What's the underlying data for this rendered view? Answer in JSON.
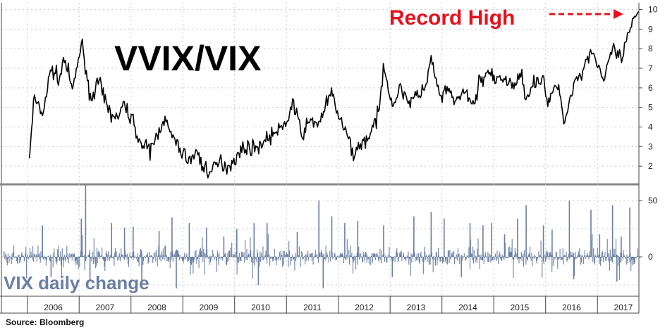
{
  "source_label": "Source:  Bloomberg",
  "colors": {
    "ratio_line": "#000000",
    "vix_change": "#6a7fa3",
    "record_high": "#e8101c",
    "divider": "#888888",
    "grid": "#c8c8c8"
  },
  "chart_data": [
    {
      "type": "line",
      "title": "VVIX/VIX",
      "annotation": "Record High",
      "x_range": [
        "2005-06",
        "2017-10"
      ],
      "ylim": [
        1.0,
        10.2
      ],
      "y_ticks": [
        "2",
        "3",
        "4",
        "5",
        "6",
        "7",
        "8",
        "9",
        "10"
      ],
      "y_axis_side": "right",
      "grid": true,
      "series": [
        {
          "values": [
            [
              "2006-01",
              2.4
            ],
            [
              "2006-02",
              5.5
            ],
            [
              "2006-04",
              4.6
            ],
            [
              "2006-06",
              7.0
            ],
            [
              "2006-08",
              6.4
            ],
            [
              "2006-09",
              7.6
            ],
            [
              "2006-11",
              5.8
            ],
            [
              "2007-01",
              8.3
            ],
            [
              "2007-02",
              7.2
            ],
            [
              "2007-03",
              5.4
            ],
            [
              "2007-05",
              6.3
            ],
            [
              "2007-07",
              5.0
            ],
            [
              "2007-09",
              4.4
            ],
            [
              "2007-11",
              5.1
            ],
            [
              "2008-01",
              4.3
            ],
            [
              "2008-03",
              3.0
            ],
            [
              "2008-05",
              2.8
            ],
            [
              "2008-07",
              3.8
            ],
            [
              "2008-08",
              4.5
            ],
            [
              "2008-10",
              3.5
            ],
            [
              "2008-12",
              2.8
            ],
            [
              "2009-02",
              2.3
            ],
            [
              "2009-04",
              2.7
            ],
            [
              "2009-05",
              2.0
            ],
            [
              "2009-07",
              1.7
            ],
            [
              "2009-09",
              2.2
            ],
            [
              "2009-11",
              2.0
            ],
            [
              "2010-01",
              2.5
            ],
            [
              "2010-03",
              3.0
            ],
            [
              "2010-05",
              2.9
            ],
            [
              "2010-07",
              3.2
            ],
            [
              "2010-09",
              3.6
            ],
            [
              "2010-11",
              3.8
            ],
            [
              "2011-01",
              4.5
            ],
            [
              "2011-02",
              5.3
            ],
            [
              "2011-04",
              3.6
            ],
            [
              "2011-06",
              4.3
            ],
            [
              "2011-08",
              4.2
            ],
            [
              "2011-10",
              5.3
            ],
            [
              "2011-11",
              5.7
            ],
            [
              "2012-01",
              4.3
            ],
            [
              "2012-03",
              3.3
            ],
            [
              "2012-04",
              2.6
            ],
            [
              "2012-06",
              3.2
            ],
            [
              "2012-08",
              3.6
            ],
            [
              "2012-10",
              4.8
            ],
            [
              "2012-11",
              7.3
            ],
            [
              "2013-01",
              5.1
            ],
            [
              "2013-03",
              6.0
            ],
            [
              "2013-05",
              5.3
            ],
            [
              "2013-07",
              5.6
            ],
            [
              "2013-09",
              6.2
            ],
            [
              "2013-10",
              7.5
            ],
            [
              "2013-12",
              5.5
            ],
            [
              "2014-02",
              5.8
            ],
            [
              "2014-04",
              5.3
            ],
            [
              "2014-06",
              5.8
            ],
            [
              "2014-08",
              5.0
            ],
            [
              "2014-09",
              6.3
            ],
            [
              "2014-11",
              6.8
            ],
            [
              "2015-01",
              6.3
            ],
            [
              "2015-03",
              6.5
            ],
            [
              "2015-05",
              6.1
            ],
            [
              "2015-07",
              6.6
            ],
            [
              "2015-08",
              5.6
            ],
            [
              "2015-10",
              6.3
            ],
            [
              "2015-12",
              6.6
            ],
            [
              "2016-01",
              5.0
            ],
            [
              "2016-03",
              6.3
            ],
            [
              "2016-05",
              4.3
            ],
            [
              "2016-07",
              6.3
            ],
            [
              "2016-09",
              6.8
            ],
            [
              "2016-11",
              8.0
            ],
            [
              "2017-01",
              7.0
            ],
            [
              "2017-02",
              6.3
            ],
            [
              "2017-04",
              8.0
            ],
            [
              "2017-06",
              7.4
            ],
            [
              "2017-08",
              8.9
            ],
            [
              "2017-09",
              9.5
            ],
            [
              "2017-10",
              9.9
            ]
          ]
        }
      ]
    },
    {
      "type": "bar",
      "title": "VIX daily change",
      "ylim": [
        -35,
        62
      ],
      "y_ticks": [
        "50",
        "0"
      ],
      "y_axis_side": "right",
      "x_axis_labels": [
        "2006",
        "2007",
        "2008",
        "2009",
        "2010",
        "2011",
        "2012",
        "2013",
        "2014",
        "2015",
        "2016",
        "2017"
      ],
      "highlights": [
        [
          "2006-04",
          28
        ],
        [
          "2006-06",
          -18
        ],
        [
          "2007-01",
          34
        ],
        [
          "2007-02",
          64
        ],
        [
          "2007-03",
          -22
        ],
        [
          "2007-08",
          30
        ],
        [
          "2007-11",
          26
        ],
        [
          "2008-01",
          27
        ],
        [
          "2008-03",
          -24
        ],
        [
          "2008-07",
          23
        ],
        [
          "2008-10",
          35
        ],
        [
          "2008-11",
          -28
        ],
        [
          "2009-02",
          30
        ],
        [
          "2009-06",
          26
        ],
        [
          "2009-10",
          18
        ],
        [
          "2010-01",
          25
        ],
        [
          "2010-05",
          30
        ],
        [
          "2010-06",
          -25
        ],
        [
          "2010-08",
          30
        ],
        [
          "2011-03",
          22
        ],
        [
          "2011-08",
          50
        ],
        [
          "2011-09",
          -28
        ],
        [
          "2011-11",
          36
        ],
        [
          "2012-02",
          30
        ],
        [
          "2012-05",
          32
        ],
        [
          "2012-11",
          28
        ],
        [
          "2013-01",
          -18
        ],
        [
          "2013-06",
          36
        ],
        [
          "2013-10",
          40
        ],
        [
          "2014-01",
          34
        ],
        [
          "2014-05",
          -18
        ],
        [
          "2014-07",
          30
        ],
        [
          "2014-10",
          28
        ],
        [
          "2014-12",
          30
        ],
        [
          "2015-03",
          20
        ],
        [
          "2015-06",
          34
        ],
        [
          "2015-08",
          46
        ],
        [
          "2015-12",
          28
        ],
        [
          "2016-02",
          24
        ],
        [
          "2016-06",
          50
        ],
        [
          "2016-07",
          -20
        ],
        [
          "2016-11",
          42
        ],
        [
          "2017-01",
          20
        ],
        [
          "2017-04",
          46
        ],
        [
          "2017-05",
          -22
        ],
        [
          "2017-06",
          18
        ],
        [
          "2017-08",
          44
        ]
      ]
    }
  ]
}
